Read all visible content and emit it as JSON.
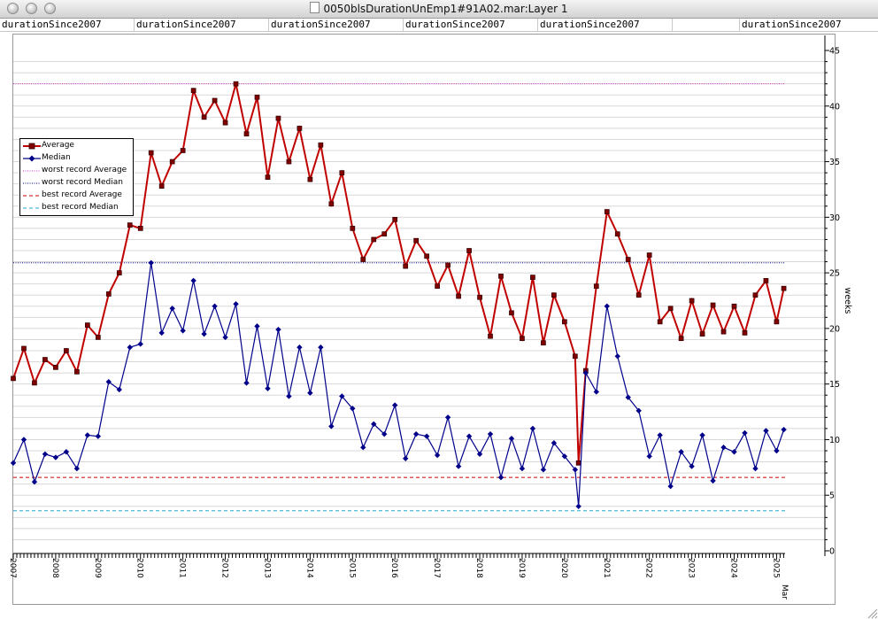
{
  "window": {
    "title": "0050blsDurationUnEmp1#91A02.mar:Layer 1"
  },
  "tabs": [
    "durationSince2007",
    "durationSince2007",
    "durationSince2007",
    "durationSince2007",
    "durationSince2007",
    "durationSince2007"
  ],
  "colors": {
    "average": "#c00000",
    "median": "#00008b",
    "worst_average": "#cc33cc",
    "worst_median": "#000080",
    "best_average": "#cc0000",
    "best_median": "#22aacc",
    "grid": "#d8d8d8"
  },
  "legend": {
    "items": [
      "Average",
      "Median",
      "worst record Average",
      "worst record Median",
      "best record Average",
      "best record Median"
    ]
  },
  "chart_data": {
    "type": "line",
    "ylabel": "weeks",
    "ylim": [
      0,
      45
    ],
    "yticks": [
      0,
      5,
      10,
      15,
      20,
      25,
      30,
      35,
      40,
      45
    ],
    "xlim": [
      2007.0,
      2025.2
    ],
    "xtick_labels": [
      "2007",
      "2008",
      "2009",
      "2010",
      "2011",
      "2012",
      "2013",
      "2014",
      "2015",
      "2016",
      "2017",
      "2018",
      "2019",
      "2020",
      "2021",
      "2022",
      "2023",
      "2024",
      "2025",
      "Mar"
    ],
    "grid": true,
    "legend_position": "top-left",
    "reference_lines": [
      {
        "name": "worst record Average",
        "value": 42.0
      },
      {
        "name": "worst record Median",
        "value": 25.9
      },
      {
        "name": "best record Average",
        "value": 6.6
      },
      {
        "name": "best record Median",
        "value": 3.6
      }
    ],
    "series": [
      {
        "name": "Average",
        "x": [
          2007.0,
          2007.25,
          2007.5,
          2007.75,
          2008.0,
          2008.25,
          2008.5,
          2008.75,
          2009.0,
          2009.25,
          2009.5,
          2009.75,
          2010.0,
          2010.25,
          2010.5,
          2010.75,
          2011.0,
          2011.25,
          2011.5,
          2011.75,
          2012.0,
          2012.25,
          2012.5,
          2012.75,
          2013.0,
          2013.25,
          2013.5,
          2013.75,
          2014.0,
          2014.25,
          2014.5,
          2014.75,
          2015.0,
          2015.25,
          2015.5,
          2015.75,
          2016.0,
          2016.25,
          2016.5,
          2016.75,
          2017.0,
          2017.25,
          2017.5,
          2017.75,
          2018.0,
          2018.25,
          2018.5,
          2018.75,
          2019.0,
          2019.25,
          2019.5,
          2019.75,
          2020.0,
          2020.25,
          2020.33,
          2020.5,
          2020.75,
          2021.0,
          2021.25,
          2021.5,
          2021.75,
          2022.0,
          2022.25,
          2022.5,
          2022.75,
          2023.0,
          2023.25,
          2023.5,
          2023.75,
          2024.0,
          2024.25,
          2024.5,
          2024.75,
          2025.0,
          2025.17
        ],
        "values": [
          15.5,
          18.2,
          15.1,
          17.2,
          16.5,
          18.0,
          16.1,
          20.3,
          19.2,
          23.1,
          25.0,
          29.3,
          29.0,
          35.8,
          32.8,
          35.0,
          36.0,
          41.4,
          39.0,
          40.5,
          38.5,
          42.0,
          37.5,
          40.8,
          33.6,
          38.9,
          35.0,
          38.0,
          33.4,
          36.5,
          31.2,
          34.0,
          29.0,
          26.2,
          28.0,
          28.5,
          29.8,
          25.6,
          27.9,
          26.5,
          23.8,
          25.7,
          22.9,
          27.0,
          22.8,
          19.3,
          24.7,
          21.4,
          19.1,
          24.6,
          18.7,
          23.0,
          20.6,
          17.5,
          7.9,
          16.2,
          23.8,
          30.5,
          28.5,
          26.2,
          23.0,
          26.6,
          20.6,
          21.8,
          19.1,
          22.5,
          19.5,
          22.1,
          19.7,
          22.0,
          19.6,
          23.0,
          24.3,
          20.6,
          23.6
        ]
      },
      {
        "name": "Median",
        "x": [
          2007.0,
          2007.25,
          2007.5,
          2007.75,
          2008.0,
          2008.25,
          2008.5,
          2008.75,
          2009.0,
          2009.25,
          2009.5,
          2009.75,
          2010.0,
          2010.25,
          2010.5,
          2010.75,
          2011.0,
          2011.25,
          2011.5,
          2011.75,
          2012.0,
          2012.25,
          2012.5,
          2012.75,
          2013.0,
          2013.25,
          2013.5,
          2013.75,
          2014.0,
          2014.25,
          2014.5,
          2014.75,
          2015.0,
          2015.25,
          2015.5,
          2015.75,
          2016.0,
          2016.25,
          2016.5,
          2016.75,
          2017.0,
          2017.25,
          2017.5,
          2017.75,
          2018.0,
          2018.25,
          2018.5,
          2018.75,
          2019.0,
          2019.25,
          2019.5,
          2019.75,
          2020.0,
          2020.25,
          2020.33,
          2020.5,
          2020.75,
          2021.0,
          2021.25,
          2021.5,
          2021.75,
          2022.0,
          2022.25,
          2022.5,
          2022.75,
          2023.0,
          2023.25,
          2023.5,
          2023.75,
          2024.0,
          2024.25,
          2024.5,
          2024.75,
          2025.0,
          2025.17
        ],
        "values": [
          7.9,
          10.0,
          6.2,
          8.7,
          8.4,
          8.9,
          7.4,
          10.4,
          10.3,
          15.2,
          14.5,
          18.3,
          18.6,
          25.9,
          19.6,
          21.8,
          19.8,
          24.3,
          19.5,
          22.0,
          19.2,
          22.2,
          15.1,
          20.2,
          14.6,
          19.9,
          13.9,
          18.3,
          14.2,
          18.3,
          11.2,
          13.9,
          12.8,
          9.3,
          11.4,
          10.5,
          13.1,
          8.3,
          10.5,
          10.3,
          8.6,
          12.0,
          7.6,
          10.3,
          8.7,
          10.5,
          6.6,
          10.1,
          7.4,
          11.0,
          7.3,
          9.7,
          8.5,
          7.3,
          4.0,
          16.0,
          14.3,
          22.0,
          17.5,
          13.8,
          12.6,
          8.5,
          10.4,
          5.8,
          8.9,
          7.6,
          10.4,
          6.3,
          9.3,
          8.9,
          10.6,
          7.4,
          10.8,
          9.0,
          10.9
        ]
      }
    ]
  }
}
